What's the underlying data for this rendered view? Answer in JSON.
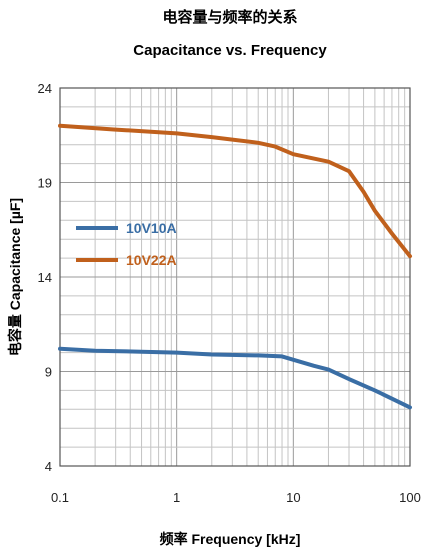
{
  "chart_data": {
    "type": "line",
    "title": "电容量与频率的关系",
    "subtitle": "Capacitance vs. Frequency",
    "xlabel": "频率 Frequency [kHz]",
    "ylabel": "电容量 Capacitance [µF]",
    "x_scale": "log",
    "xlim": [
      0.1,
      100
    ],
    "ylim": [
      4,
      24
    ],
    "x_ticks": [
      "0.1",
      "1",
      "10",
      "100"
    ],
    "y_ticks": [
      "4",
      "9",
      "14",
      "19",
      "24"
    ],
    "grid": true,
    "legend_position": "left-middle",
    "series": [
      {
        "name": "10V10A",
        "color": "#3a6ea5",
        "points": [
          [
            0.1,
            10.2
          ],
          [
            0.2,
            10.1
          ],
          [
            0.5,
            10.05
          ],
          [
            1,
            10.0
          ],
          [
            2,
            9.9
          ],
          [
            5,
            9.85
          ],
          [
            8,
            9.8
          ],
          [
            15,
            9.3
          ],
          [
            20,
            9.1
          ],
          [
            30,
            8.6
          ],
          [
            50,
            8.0
          ],
          [
            100,
            7.1
          ]
        ]
      },
      {
        "name": "10V22A",
        "color": "#c0601c",
        "points": [
          [
            0.1,
            22.0
          ],
          [
            0.3,
            21.8
          ],
          [
            1,
            21.6
          ],
          [
            2,
            21.4
          ],
          [
            5,
            21.1
          ],
          [
            7,
            20.9
          ],
          [
            10,
            20.5
          ],
          [
            20,
            20.1
          ],
          [
            30,
            19.6
          ],
          [
            40,
            18.5
          ],
          [
            50,
            17.5
          ],
          [
            70,
            16.3
          ],
          [
            100,
            15.1
          ]
        ]
      }
    ]
  }
}
